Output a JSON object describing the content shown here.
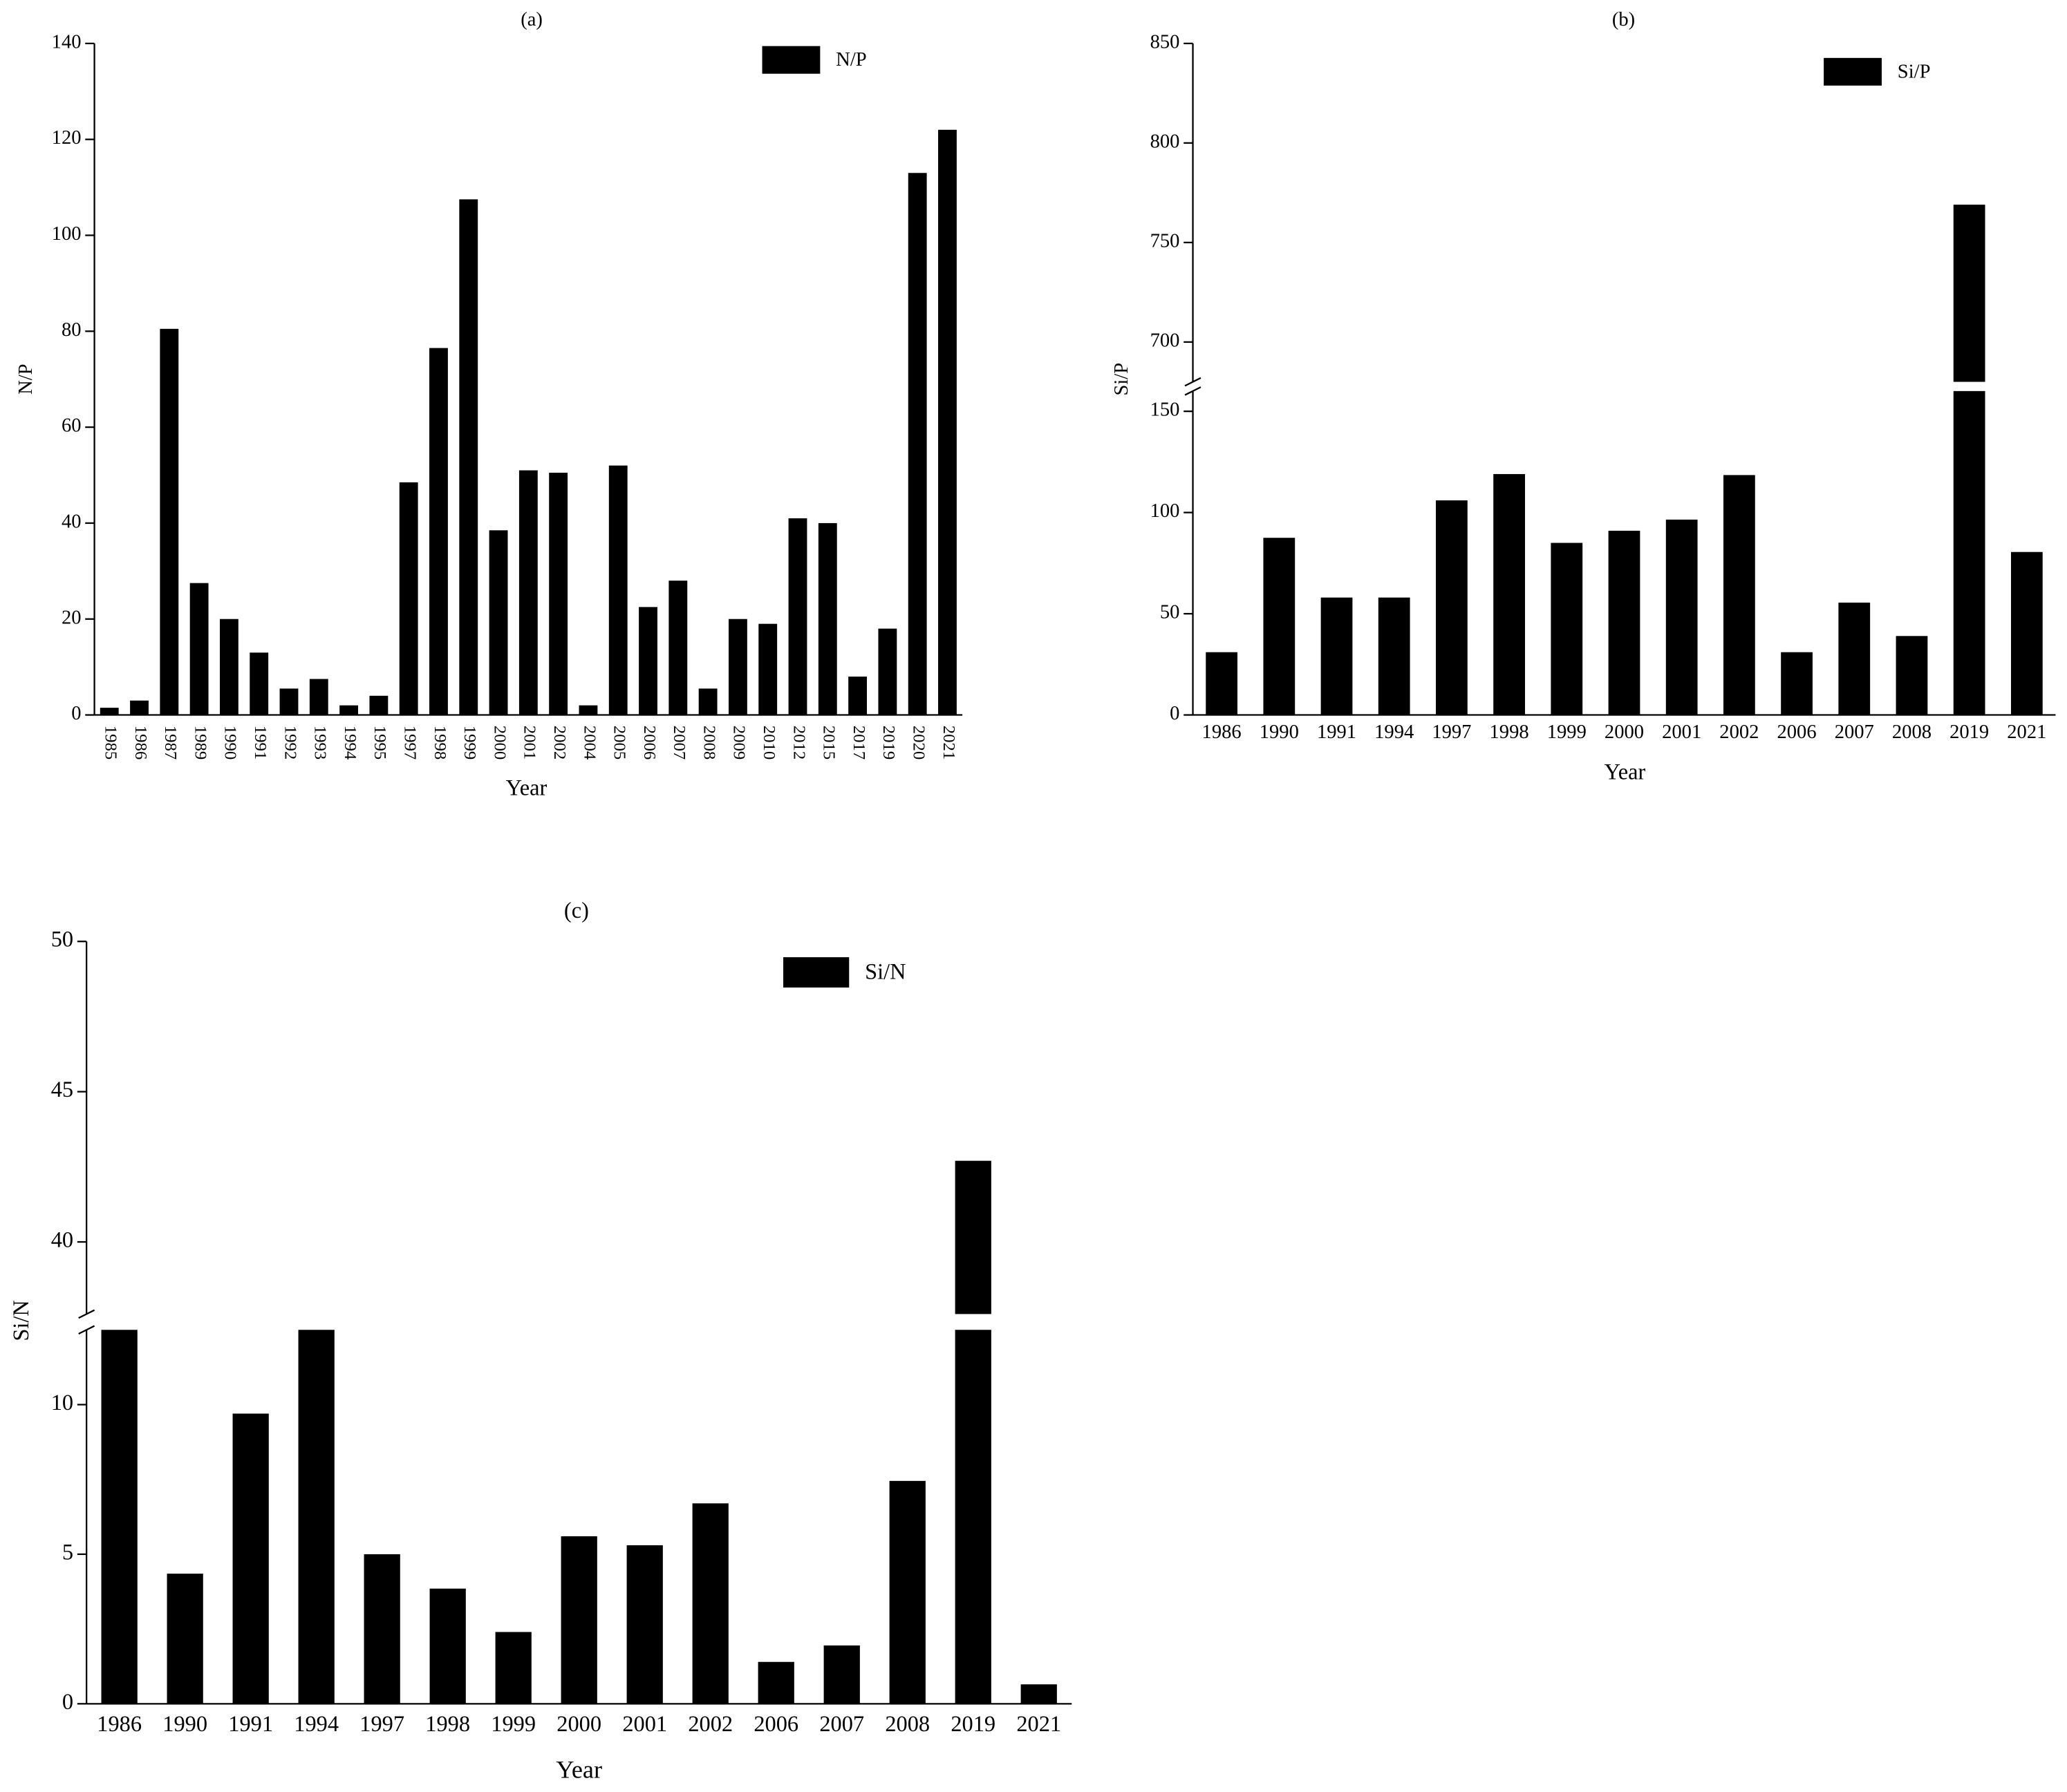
{
  "chart_data": [
    {
      "type": "bar",
      "title": "(a)",
      "x_label": "Year",
      "y_label": "N/P",
      "categories": [
        "1985",
        "1986",
        "1987",
        "1989",
        "1990",
        "1991",
        "1992",
        "1993",
        "1994",
        "1995",
        "1997",
        "1998",
        "1999",
        "2000",
        "2001",
        "2002",
        "2004",
        "2005",
        "2006",
        "2007",
        "2008",
        "2009",
        "2010",
        "2012",
        "2015",
        "2017",
        "2019",
        "2020",
        "2021"
      ],
      "series": [
        {
          "name": "N/P",
          "color": "#000000",
          "values": [
            1.5,
            3,
            80.5,
            27.5,
            20,
            13,
            5.5,
            7.5,
            2,
            4,
            48.5,
            76.5,
            107.5,
            38.5,
            51,
            50.5,
            2,
            52,
            22.5,
            28,
            5.5,
            20,
            19,
            41,
            40,
            8,
            18,
            113,
            122
          ]
        }
      ],
      "ylim": [
        0,
        140
      ],
      "yticks": [
        0,
        20,
        40,
        60,
        80,
        100,
        120,
        140
      ]
    },
    {
      "type": "bar",
      "title": "(b)",
      "x_label": "Year",
      "y_label": "Si/P",
      "categories": [
        "1986",
        "1990",
        "1991",
        "1994",
        "1997",
        "1998",
        "1999",
        "2000",
        "2001",
        "2002",
        "2006",
        "2007",
        "2008",
        "2019",
        "2021"
      ],
      "series": [
        {
          "name": "Si/P",
          "color": "#000000",
          "values": [
            31,
            87.5,
            58,
            58,
            106,
            119,
            85,
            91,
            96.5,
            118.5,
            31,
            55.5,
            39,
            769,
            80.5
          ]
        }
      ],
      "ylim": [
        0,
        850
      ],
      "y_break": [
        160,
        680
      ],
      "yticks": [
        0,
        50,
        100,
        150,
        700,
        750,
        800,
        850
      ]
    },
    {
      "type": "bar",
      "title": "(c)",
      "x_label": "Year",
      "y_label": "Si/N",
      "categories": [
        "1986",
        "1990",
        "1991",
        "1994",
        "1997",
        "1998",
        "1999",
        "2000",
        "2001",
        "2002",
        "2006",
        "2007",
        "2008",
        "2019",
        "2021"
      ],
      "series": [
        {
          "name": "Si/N",
          "color": "#000000",
          "values": [
            12.5,
            4.35,
            9.7,
            12.5,
            5,
            3.85,
            2.4,
            5.6,
            5.3,
            6.7,
            1.4,
            1.95,
            7.45,
            42.7,
            0.65
          ]
        }
      ],
      "ylim": [
        0,
        50
      ],
      "y_break": [
        12.5,
        37.6
      ],
      "yticks": [
        0,
        5,
        10,
        40,
        45,
        50
      ]
    }
  ]
}
